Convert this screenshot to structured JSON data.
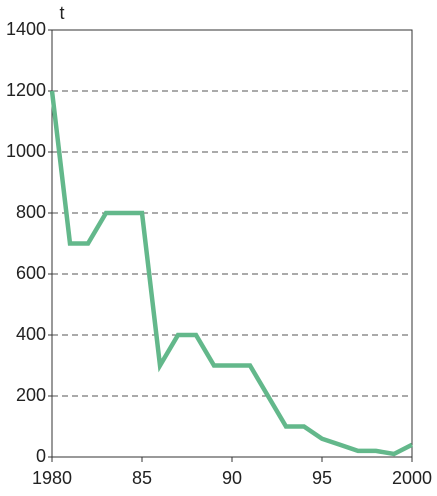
{
  "chart_data": {
    "type": "line",
    "y_label": "t",
    "x": [
      1980,
      1981,
      1982,
      1983,
      1984,
      1985,
      1986,
      1987,
      1988,
      1989,
      1990,
      1991,
      1992,
      1993,
      1994,
      1995,
      1996,
      1997,
      1998,
      1999,
      2000
    ],
    "series": [
      {
        "color": "#63b88b",
        "values": [
          1200,
          700,
          700,
          800,
          800,
          800,
          300,
          400,
          400,
          300,
          300,
          300,
          200,
          100,
          100,
          60,
          40,
          20,
          20,
          10,
          40
        ]
      }
    ],
    "xlim": [
      1980,
      2000
    ],
    "xticks": [
      1980,
      {
        "value": 1985,
        "label": "85"
      },
      {
        "value": 1990,
        "label": "90"
      },
      {
        "value": 1995,
        "label": "95"
      },
      2000
    ],
    "ylim": [
      0,
      1400
    ],
    "yticks": [
      0,
      200,
      400,
      600,
      800,
      1000,
      1200,
      1400
    ],
    "grid": true
  }
}
